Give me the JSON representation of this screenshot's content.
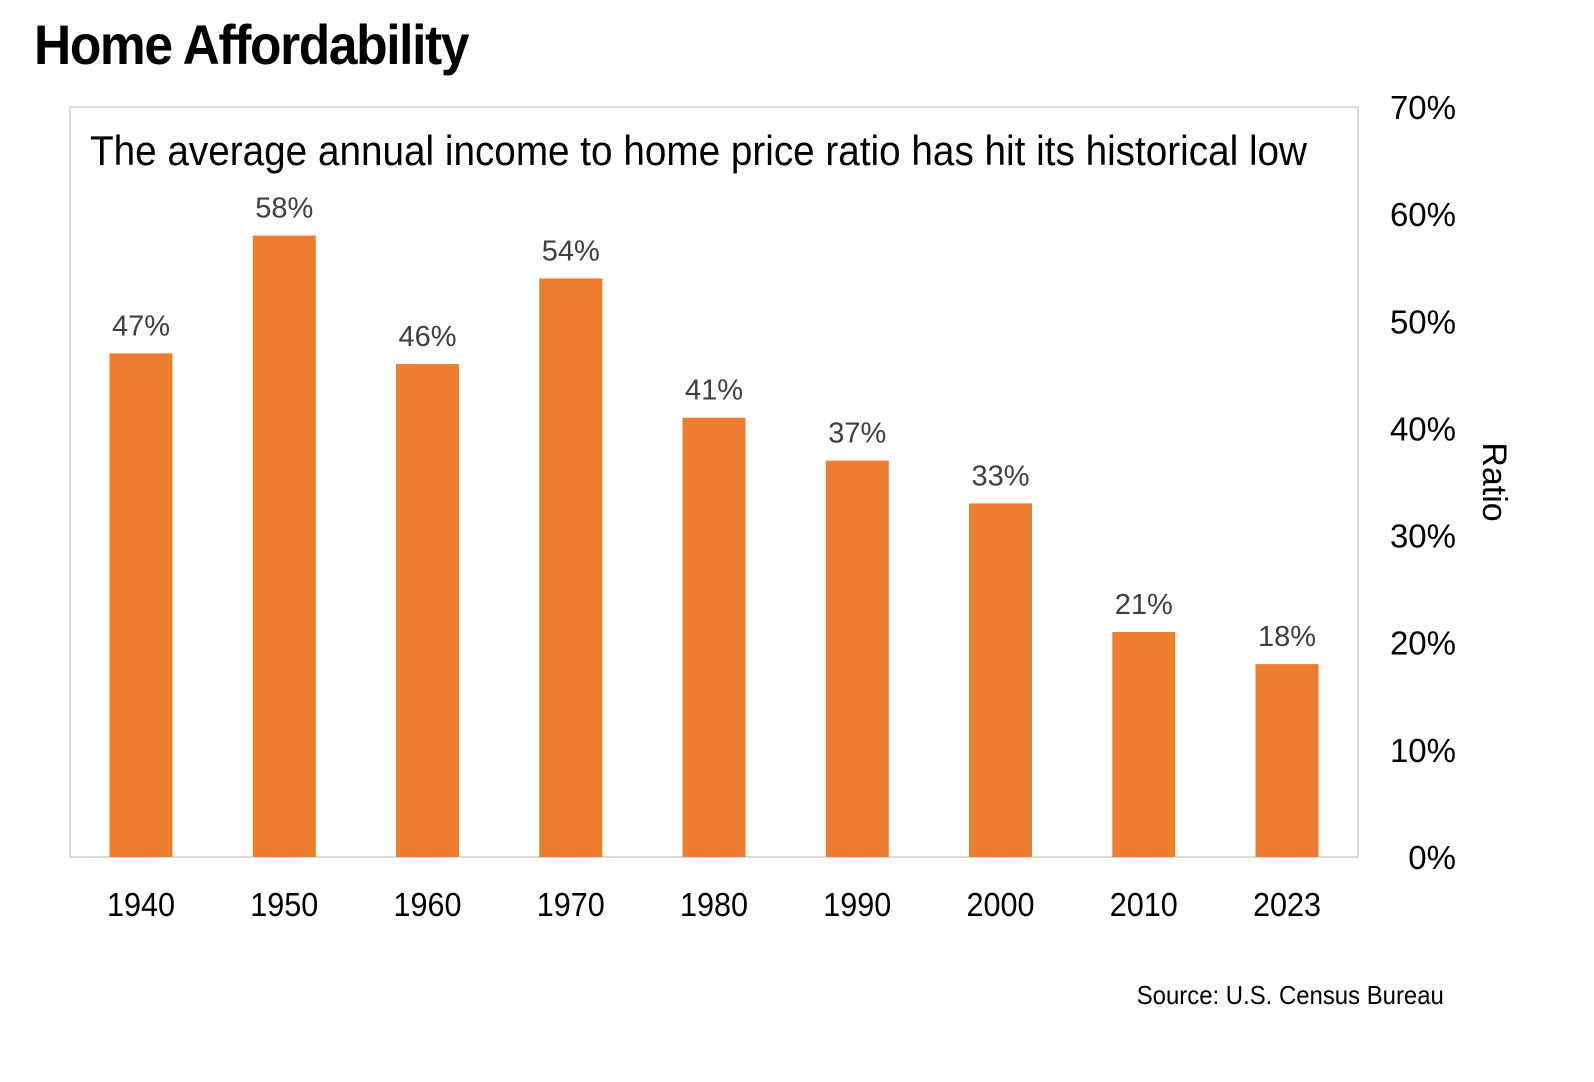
{
  "header": {
    "title": "Home Affordability"
  },
  "footer": {
    "source": "Source: U.S. Census Bureau"
  },
  "colors": {
    "bar": "#ED7D31",
    "frame": "#D9D9D9",
    "label": "#404040",
    "text": "#000000"
  },
  "chart_data": {
    "type": "bar",
    "title": "The average annual income to home price ratio has hit its historical low",
    "xlabel": "",
    "ylabel": "Ratio",
    "y_axis_position": "right",
    "ylim": [
      0,
      70
    ],
    "yticks": [
      0,
      10,
      20,
      30,
      40,
      50,
      60,
      70
    ],
    "ytick_labels": [
      "0%",
      "10%",
      "20%",
      "30%",
      "40%",
      "50%",
      "60%",
      "70%"
    ],
    "categories": [
      "1940",
      "1950",
      "1960",
      "1970",
      "1980",
      "1990",
      "2000",
      "2010",
      "2023"
    ],
    "values": [
      47,
      58,
      46,
      54,
      41,
      37,
      33,
      21,
      18
    ],
    "data_labels": [
      "47%",
      "58%",
      "46%",
      "54%",
      "41%",
      "37%",
      "33%",
      "21%",
      "18%"
    ],
    "grid": false,
    "legend": "none"
  }
}
